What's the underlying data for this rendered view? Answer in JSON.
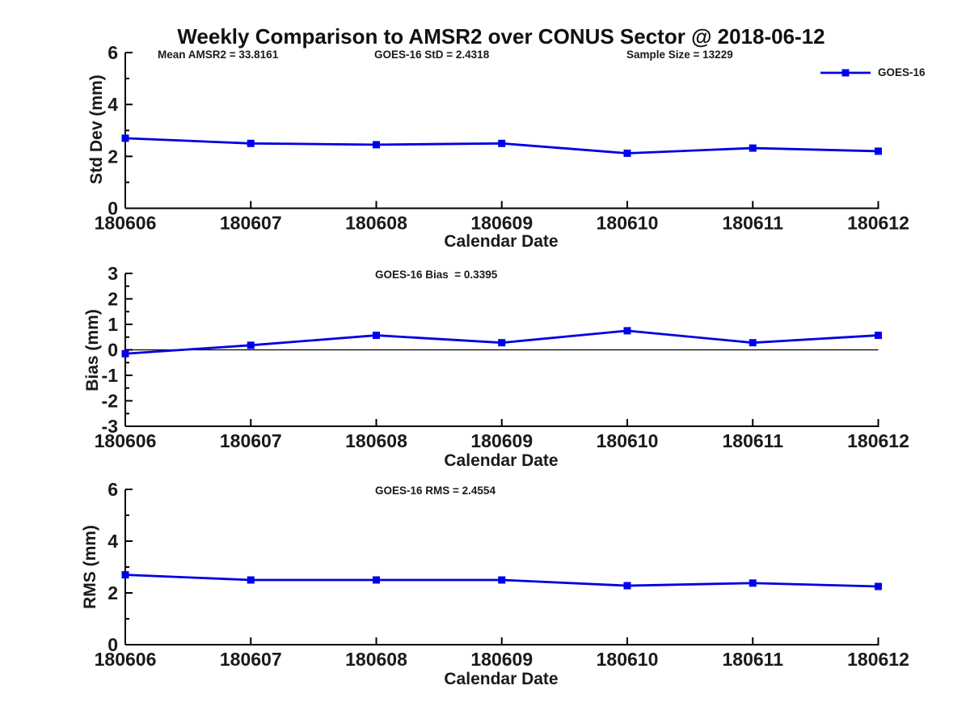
{
  "title": "Weekly Comparison to AMSR2 over CONUS Sector @ 2018-06-12",
  "colors": {
    "series": "#0000e0",
    "marker": "#0000f0",
    "axis": "#000000",
    "text": "#1a1a1a",
    "background": "#ffffff"
  },
  "chart_data": [
    {
      "type": "line",
      "id": "std-dev",
      "xlabel": "Calendar Date",
      "ylabel": "Std Dev (mm)",
      "categories": [
        "180606",
        "180607",
        "180608",
        "180609",
        "180610",
        "180611",
        "180612"
      ],
      "series": [
        {
          "name": "GOES-16",
          "values": [
            2.7,
            2.5,
            2.45,
            2.5,
            2.12,
            2.32,
            2.2
          ]
        }
      ],
      "ylim": [
        0,
        6
      ],
      "yticks": [
        0,
        2,
        4,
        6
      ],
      "annotations": [
        "Mean AMSR2 = 33.8161",
        "GOES-16 StD = 2.4318",
        "Sample Size = 13229"
      ],
      "zero_line": false,
      "grid": false,
      "legend_position": "top-right",
      "marker_shape": "square"
    },
    {
      "type": "line",
      "id": "bias",
      "xlabel": "Calendar Date",
      "ylabel": "Bias (mm)",
      "categories": [
        "180606",
        "180607",
        "180608",
        "180609",
        "180610",
        "180611",
        "180612"
      ],
      "series": [
        {
          "name": "GOES-16",
          "values": [
            -0.15,
            0.18,
            0.57,
            0.28,
            0.75,
            0.28,
            0.57
          ]
        }
      ],
      "ylim": [
        -3,
        3
      ],
      "yticks": [
        -3,
        -2,
        -1,
        0,
        1,
        2,
        3
      ],
      "annotations": [
        "GOES-16 Bias  = 0.3395"
      ],
      "zero_line": true,
      "grid": false,
      "legend_position": "none",
      "marker_shape": "square"
    },
    {
      "type": "line",
      "id": "rms",
      "xlabel": "Calendar Date",
      "ylabel": "RMS (mm)",
      "categories": [
        "180606",
        "180607",
        "180608",
        "180609",
        "180610",
        "180611",
        "180612"
      ],
      "series": [
        {
          "name": "GOES-16",
          "values": [
            2.7,
            2.5,
            2.5,
            2.5,
            2.28,
            2.38,
            2.25
          ]
        }
      ],
      "ylim": [
        0,
        6
      ],
      "yticks": [
        0,
        2,
        4,
        6
      ],
      "annotations": [
        "GOES-16 RMS = 2.4554"
      ],
      "zero_line": false,
      "grid": false,
      "legend_position": "none",
      "marker_shape": "square"
    }
  ]
}
